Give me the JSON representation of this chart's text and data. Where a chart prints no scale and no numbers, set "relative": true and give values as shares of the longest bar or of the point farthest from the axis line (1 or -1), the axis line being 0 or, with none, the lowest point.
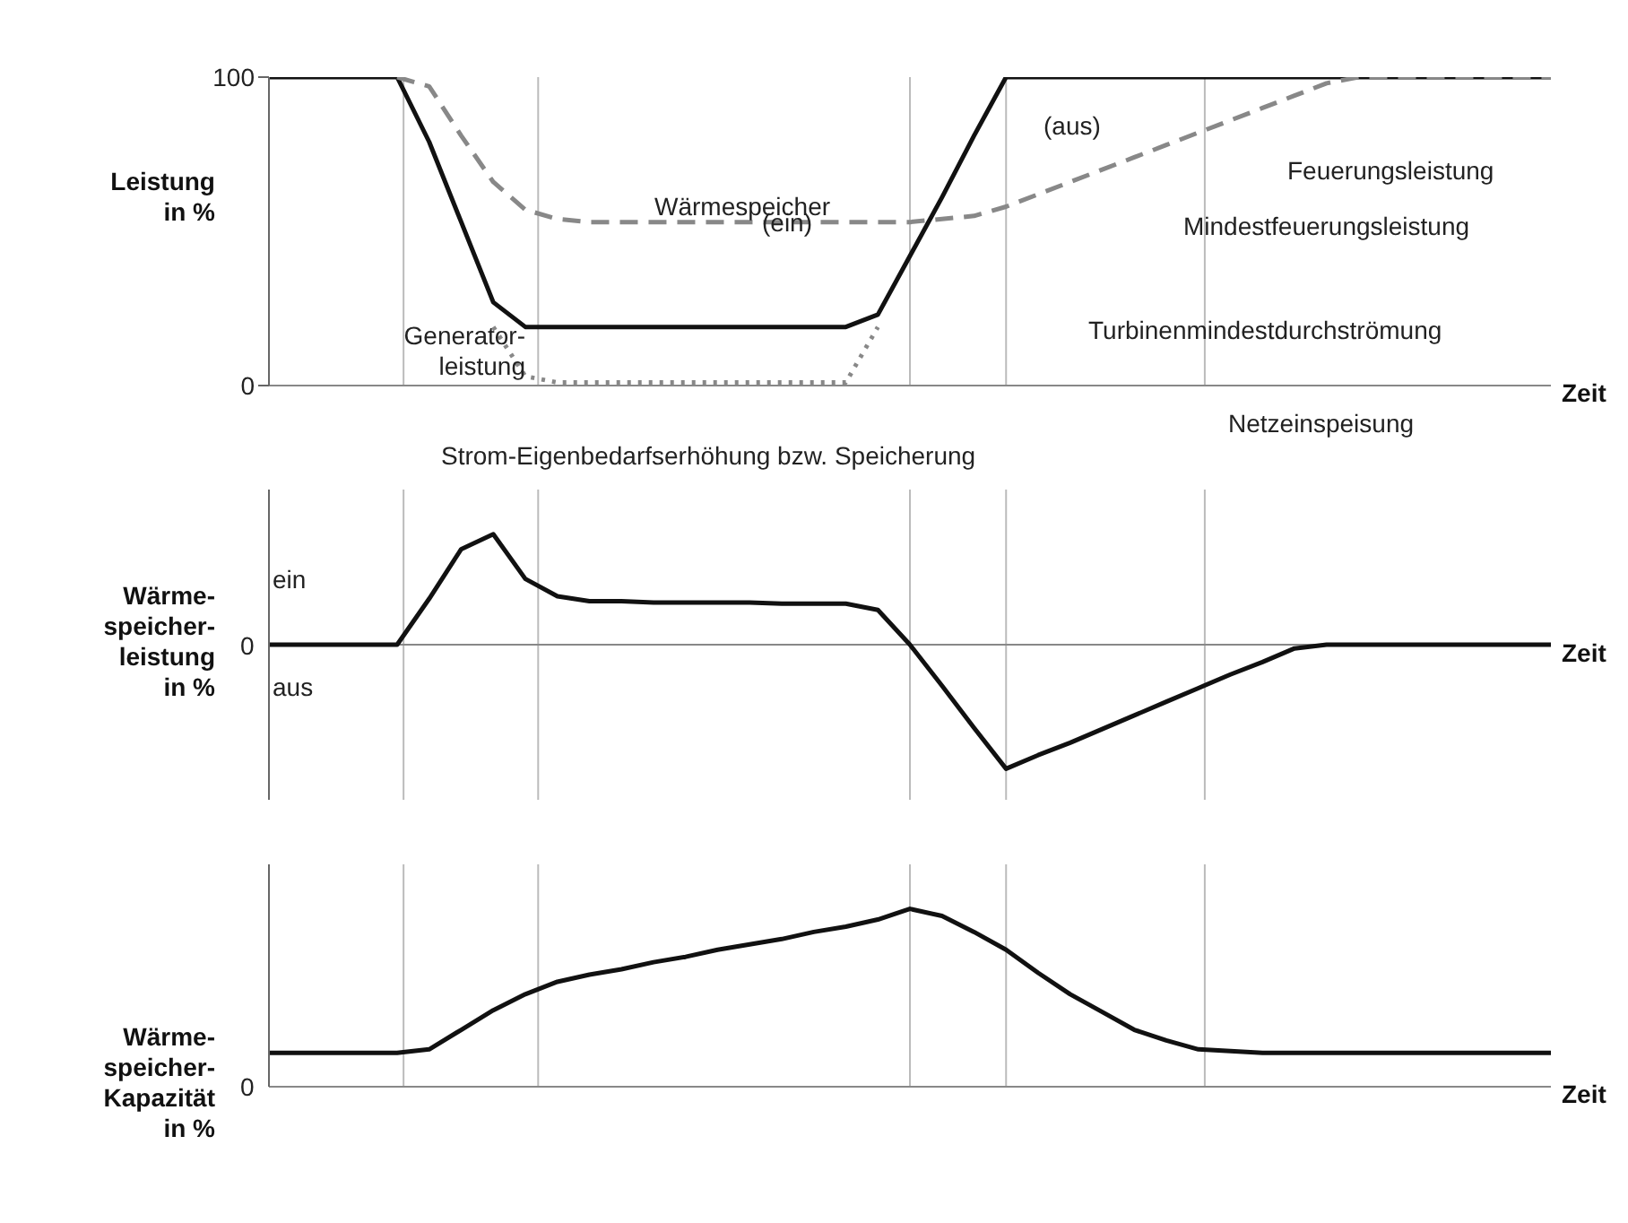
{
  "chart_data": [
    {
      "type": "line",
      "ylabel": "Leistung\nin %",
      "xlabel": "Zeit",
      "categories": [
        null,
        null,
        null,
        null,
        null,
        null,
        null,
        null,
        null,
        null,
        null,
        null,
        null,
        null,
        null,
        null,
        null,
        null,
        null,
        null,
        null,
        null,
        null,
        null,
        null,
        null,
        null,
        null,
        null,
        null,
        null,
        null,
        null,
        null,
        null,
        null,
        null,
        null,
        null,
        null,
        null
      ],
      "ylim": [
        0,
        100
      ],
      "yticks": [
        0,
        100
      ],
      "tick_labels": "y",
      "grid": "x",
      "series": [
        {
          "color": "#111111",
          "line_style": "solid",
          "values": [
            100,
            100,
            100,
            100,
            100,
            79,
            53,
            27,
            19,
            19,
            19,
            19,
            19,
            19,
            19,
            19,
            19,
            19,
            19,
            23,
            42,
            61,
            81,
            100,
            100,
            100,
            100,
            100,
            100,
            100,
            100,
            100,
            100,
            100,
            100,
            100,
            100,
            100,
            100,
            100,
            100
          ]
        },
        {
          "color": "#888888",
          "line_style": "dashed",
          "values": [
            null,
            null,
            null,
            null,
            100,
            97,
            81,
            66,
            57,
            54,
            53,
            53,
            53,
            53,
            53,
            53,
            53,
            53,
            53,
            53,
            53,
            54,
            55,
            58,
            62,
            66,
            70,
            74,
            78,
            82,
            86,
            90,
            94,
            98,
            100,
            100,
            100,
            100,
            100,
            100,
            100
          ]
        },
        {
          "color": "#888888",
          "line_style": "dotted",
          "values": [
            null,
            null,
            null,
            null,
            null,
            null,
            null,
            19,
            3,
            1,
            1,
            1,
            1,
            1,
            1,
            1,
            1,
            1,
            1,
            19,
            null,
            null,
            null,
            null,
            null,
            null,
            null,
            null,
            null,
            null,
            null,
            null,
            null,
            null,
            null,
            null,
            null,
            null,
            null,
            null,
            null
          ]
        }
      ],
      "annotations": [
        "Wärmespeicher",
        "(aus)",
        "(ein)",
        "Feuerungsleistung",
        "Mindestfeuerungsleistung",
        "Generator-\nleistung",
        "Turbinenmindestdurchströmung",
        "Netzeinspeisung",
        "Strom-Eigenbedarfserhöhung bzw. Speicherung"
      ]
    },
    {
      "type": "line",
      "ylabel": "Wärme-\nspeicher-\nleistung\nin %",
      "xlabel": "Zeit",
      "categories": [
        null,
        null,
        null,
        null,
        null,
        null,
        null,
        null,
        null,
        null,
        null,
        null,
        null,
        null,
        null,
        null,
        null,
        null,
        null,
        null,
        null,
        null,
        null,
        null,
        null,
        null,
        null,
        null,
        null,
        null,
        null,
        null,
        null,
        null,
        null,
        null,
        null,
        null,
        null,
        null,
        null
      ],
      "relative": true,
      "tick_labels": false,
      "grid": "x",
      "series": [
        {
          "color": "#111111",
          "values": [
            0,
            0,
            0,
            0,
            0,
            0.37,
            0.77,
            0.89,
            0.53,
            0.39,
            0.35,
            0.35,
            0.34,
            0.34,
            0.34,
            0.34,
            0.33,
            0.33,
            0.33,
            0.28,
            0,
            -0.33,
            -0.67,
            -1,
            -0.89,
            -0.79,
            -0.68,
            -0.57,
            -0.46,
            -0.35,
            -0.24,
            -0.14,
            -0.03,
            0,
            0,
            0,
            0,
            0,
            0,
            0,
            0
          ]
        }
      ],
      "annotations": [
        "ein",
        "aus",
        "0"
      ]
    },
    {
      "type": "line",
      "ylabel": "Wärme-\nspeicher-\nKapazität\nin %",
      "xlabel": "Zeit",
      "categories": [
        null,
        null,
        null,
        null,
        null,
        null,
        null,
        null,
        null,
        null,
        null,
        null,
        null,
        null,
        null,
        null,
        null,
        null,
        null,
        null,
        null,
        null,
        null,
        null,
        null,
        null,
        null,
        null,
        null,
        null,
        null,
        null,
        null,
        null,
        null,
        null,
        null,
        null,
        null,
        null,
        null
      ],
      "relative": true,
      "tick_labels": false,
      "grid": "x",
      "series": [
        {
          "color": "#111111",
          "values": [
            0.19,
            0.19,
            0.19,
            0.19,
            0.19,
            0.21,
            0.32,
            0.43,
            0.52,
            0.59,
            0.63,
            0.66,
            0.7,
            0.73,
            0.77,
            0.8,
            0.83,
            0.87,
            0.9,
            0.94,
            1,
            0.96,
            0.87,
            0.77,
            0.64,
            0.52,
            0.42,
            0.32,
            0.26,
            0.21,
            0.2,
            0.19,
            0.19,
            0.19,
            0.19,
            0.19,
            0.19,
            0.19,
            0.19,
            0.19,
            0.19
          ]
        }
      ],
      "annotations": [
        "0"
      ]
    }
  ]
}
